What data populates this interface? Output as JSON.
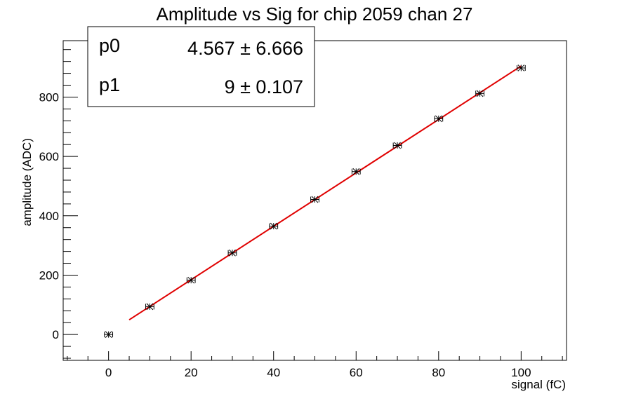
{
  "chart_data": {
    "type": "scatter",
    "title": "Amplitude vs Sig for chip 2059 chan 27",
    "xlabel": "signal (fC)",
    "ylabel": "amplitude (ADC)",
    "xlim": [
      -11,
      111
    ],
    "ylim": [
      -87,
      990
    ],
    "x_ticks": [
      0,
      20,
      40,
      60,
      80,
      100
    ],
    "y_ticks": [
      0,
      200,
      400,
      600,
      800
    ],
    "grid": false,
    "series": [
      {
        "x": [
          0,
          10,
          20,
          30,
          40,
          50,
          60,
          70,
          80,
          90,
          100
        ],
        "y": [
          0,
          94,
          183,
          275,
          365,
          455,
          549,
          637,
          727,
          812,
          898
        ],
        "x_error": 1,
        "marker": "star",
        "color": "#000000"
      }
    ],
    "fit": {
      "x_range": [
        5,
        100
      ],
      "p0": 4.567,
      "p1": 9,
      "color": "#e00000"
    },
    "stats_box": {
      "position": "top-left",
      "rows": [
        {
          "name": "p0",
          "value": "4.567 ± 6.666"
        },
        {
          "name": "p1",
          "value": "9 ± 0.107"
        }
      ]
    }
  }
}
